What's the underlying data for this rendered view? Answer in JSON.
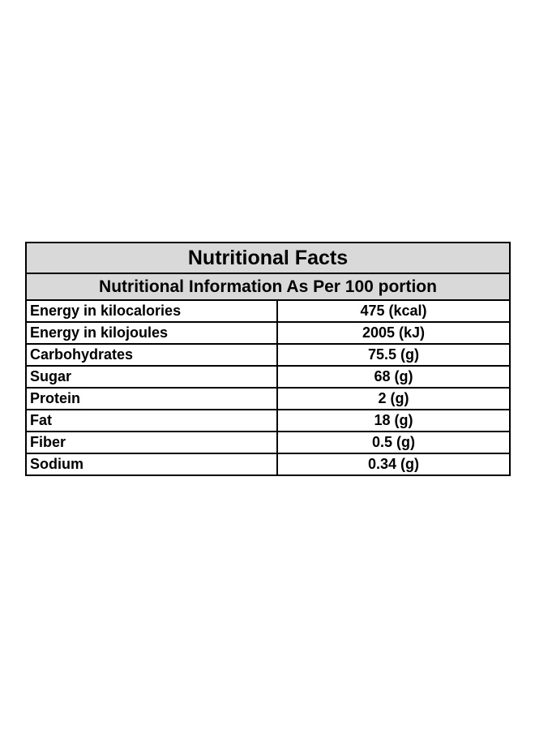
{
  "table": {
    "title": "Nutritional Facts",
    "subtitle": "Nutritional Information As Per 100 portion",
    "rows": [
      {
        "name": "Energy in kilocalories",
        "value": "475 (kcal)"
      },
      {
        "name": "Energy in kilojoules",
        "value": "2005 (kJ)"
      },
      {
        "name": "Carbohydrates",
        "value": "75.5 (g)"
      },
      {
        "name": "Sugar",
        "value": "68 (g)"
      },
      {
        "name": "Protein",
        "value": "2 (g)"
      },
      {
        "name": "Fat",
        "value": "18 (g)"
      },
      {
        "name": "Fiber",
        "value": "0.5 (g)"
      },
      {
        "name": "Sodium",
        "value": "0.34 (g)"
      }
    ],
    "header_color": "#d9d9d9",
    "border_color": "#000000"
  }
}
